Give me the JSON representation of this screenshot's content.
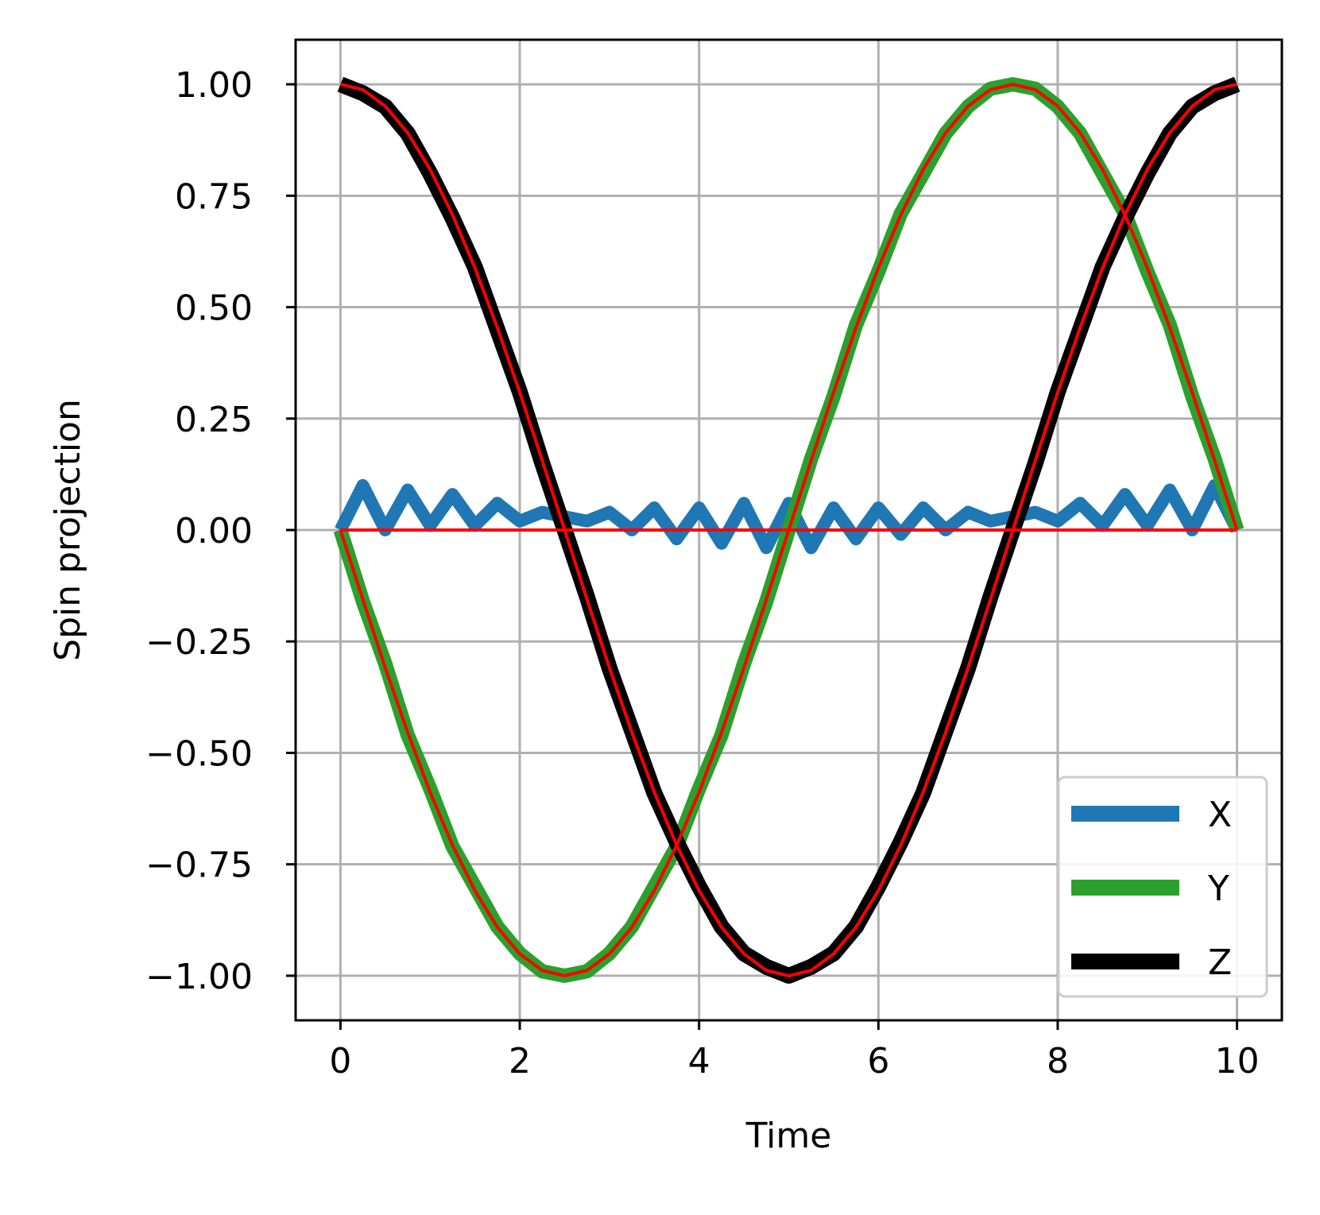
{
  "chart_data": {
    "type": "line",
    "xlabel": "Time",
    "ylabel": "Spin projection",
    "xlim": [
      -0.5,
      10.5
    ],
    "ylim": [
      -1.1,
      1.1
    ],
    "xticks": [
      0,
      2,
      4,
      6,
      8,
      10
    ],
    "xtick_labels": [
      "0",
      "2",
      "4",
      "6",
      "8",
      "10"
    ],
    "yticks": [
      1.0,
      0.75,
      0.5,
      0.25,
      0.0,
      -0.25,
      -0.5,
      -0.75,
      -1.0
    ],
    "ytick_labels": [
      "1.00",
      "0.75",
      "0.50",
      "0.25",
      "0.00",
      "−0.25",
      "−0.50",
      "−0.75",
      "−1.00"
    ],
    "grid": true,
    "legend_position": "lower-right",
    "series": [
      {
        "name": "X",
        "color": "#1f77b4",
        "x": [
          0,
          0.25,
          0.5,
          0.75,
          1.0,
          1.25,
          1.5,
          1.75,
          2.0,
          2.25,
          2.5,
          2.75,
          3.0,
          3.25,
          3.5,
          3.75,
          4.0,
          4.25,
          4.5,
          4.75,
          5.0,
          5.25,
          5.5,
          5.75,
          6.0,
          6.25,
          6.5,
          6.75,
          7.0,
          7.25,
          7.5,
          7.75,
          8.0,
          8.25,
          8.5,
          8.75,
          9.0,
          9.25,
          9.5,
          9.75,
          10.0
        ],
        "y": [
          0.0,
          0.1,
          0.0,
          0.09,
          0.01,
          0.08,
          0.01,
          0.06,
          0.02,
          0.04,
          0.03,
          0.02,
          0.04,
          0.0,
          0.05,
          -0.02,
          0.05,
          -0.03,
          0.06,
          -0.04,
          0.06,
          -0.04,
          0.05,
          -0.02,
          0.05,
          -0.01,
          0.05,
          0.0,
          0.04,
          0.02,
          0.03,
          0.04,
          0.02,
          0.06,
          0.01,
          0.08,
          0.01,
          0.09,
          0.0,
          0.1,
          0.0
        ]
      },
      {
        "name": "Y",
        "color": "#2ca02c",
        "x": [
          0,
          0.25,
          0.5,
          0.75,
          1.0,
          1.25,
          1.5,
          1.75,
          2.0,
          2.25,
          2.5,
          2.75,
          3.0,
          3.25,
          3.5,
          3.75,
          4.0,
          4.25,
          4.5,
          4.75,
          5.0,
          5.25,
          5.5,
          5.75,
          6.0,
          6.25,
          6.5,
          6.75,
          7.0,
          7.25,
          7.5,
          7.75,
          8.0,
          8.25,
          8.5,
          8.75,
          9.0,
          9.25,
          9.5,
          9.75,
          10.0
        ],
        "y": [
          0.0,
          -0.16,
          -0.3,
          -0.46,
          -0.58,
          -0.71,
          -0.8,
          -0.89,
          -0.95,
          -0.99,
          -1.0,
          -0.99,
          -0.95,
          -0.89,
          -0.8,
          -0.71,
          -0.58,
          -0.46,
          -0.3,
          -0.16,
          0.0,
          0.16,
          0.3,
          0.46,
          0.58,
          0.71,
          0.8,
          0.89,
          0.95,
          0.99,
          1.0,
          0.99,
          0.95,
          0.89,
          0.8,
          0.71,
          0.58,
          0.46,
          0.3,
          0.16,
          0.0
        ]
      },
      {
        "name": "Z",
        "color": "#000000",
        "x": [
          0,
          0.25,
          0.5,
          0.75,
          1.0,
          1.25,
          1.5,
          1.75,
          2.0,
          2.25,
          2.5,
          2.75,
          3.0,
          3.25,
          3.5,
          3.75,
          4.0,
          4.25,
          4.5,
          4.75,
          5.0,
          5.25,
          5.5,
          5.75,
          6.0,
          6.25,
          6.5,
          6.75,
          7.0,
          7.25,
          7.5,
          7.75,
          8.0,
          8.25,
          8.5,
          8.75,
          9.0,
          9.25,
          9.5,
          9.75,
          10.0
        ],
        "y": [
          1.0,
          0.98,
          0.95,
          0.89,
          0.8,
          0.7,
          0.59,
          0.45,
          0.31,
          0.15,
          0.0,
          -0.15,
          -0.31,
          -0.45,
          -0.59,
          -0.7,
          -0.8,
          -0.89,
          -0.95,
          -0.98,
          -1.0,
          -0.98,
          -0.95,
          -0.89,
          -0.8,
          -0.7,
          -0.59,
          -0.45,
          -0.31,
          -0.15,
          0.0,
          0.15,
          0.31,
          0.45,
          0.59,
          0.7,
          0.8,
          0.89,
          0.95,
          0.98,
          1.0
        ]
      }
    ],
    "reference_lines": {
      "color": "#ff0000",
      "x": [
        0,
        0.25,
        0.5,
        0.75,
        1.0,
        1.25,
        1.5,
        1.75,
        2.0,
        2.25,
        2.5,
        2.75,
        3.0,
        3.25,
        3.5,
        3.75,
        4.0,
        4.25,
        4.5,
        4.75,
        5.0,
        5.25,
        5.5,
        5.75,
        6.0,
        6.25,
        6.5,
        6.75,
        7.0,
        7.25,
        7.5,
        7.75,
        8.0,
        8.25,
        8.5,
        8.75,
        9.0,
        9.25,
        9.5,
        9.75,
        10.0
      ],
      "lines": [
        [
          0,
          0,
          0,
          0,
          0,
          0,
          0,
          0,
          0,
          0,
          0,
          0,
          0,
          0,
          0,
          0,
          0,
          0,
          0,
          0,
          0,
          0,
          0,
          0,
          0,
          0,
          0,
          0,
          0,
          0,
          0,
          0,
          0,
          0,
          0,
          0,
          0,
          0,
          0,
          0,
          0
        ],
        [
          0.0,
          -0.156,
          -0.309,
          -0.454,
          -0.588,
          -0.707,
          -0.809,
          -0.891,
          -0.951,
          -0.988,
          -1.0,
          -0.988,
          -0.951,
          -0.891,
          -0.809,
          -0.707,
          -0.588,
          -0.454,
          -0.309,
          -0.156,
          0.0,
          0.156,
          0.309,
          0.454,
          0.588,
          0.707,
          0.809,
          0.891,
          0.951,
          0.988,
          1.0,
          0.988,
          0.951,
          0.891,
          0.809,
          0.707,
          0.588,
          0.454,
          0.309,
          0.156,
          0.0
        ],
        [
          1.0,
          0.988,
          0.951,
          0.891,
          0.809,
          0.707,
          0.588,
          0.454,
          0.309,
          0.156,
          0.0,
          -0.156,
          -0.309,
          -0.454,
          -0.588,
          -0.707,
          -0.809,
          -0.891,
          -0.951,
          -0.988,
          -1.0,
          -0.988,
          -0.951,
          -0.891,
          -0.809,
          -0.707,
          -0.588,
          -0.454,
          -0.309,
          -0.156,
          0.0,
          0.156,
          0.309,
          0.454,
          0.588,
          0.707,
          0.809,
          0.891,
          0.951,
          0.988,
          1.0
        ]
      ]
    }
  }
}
